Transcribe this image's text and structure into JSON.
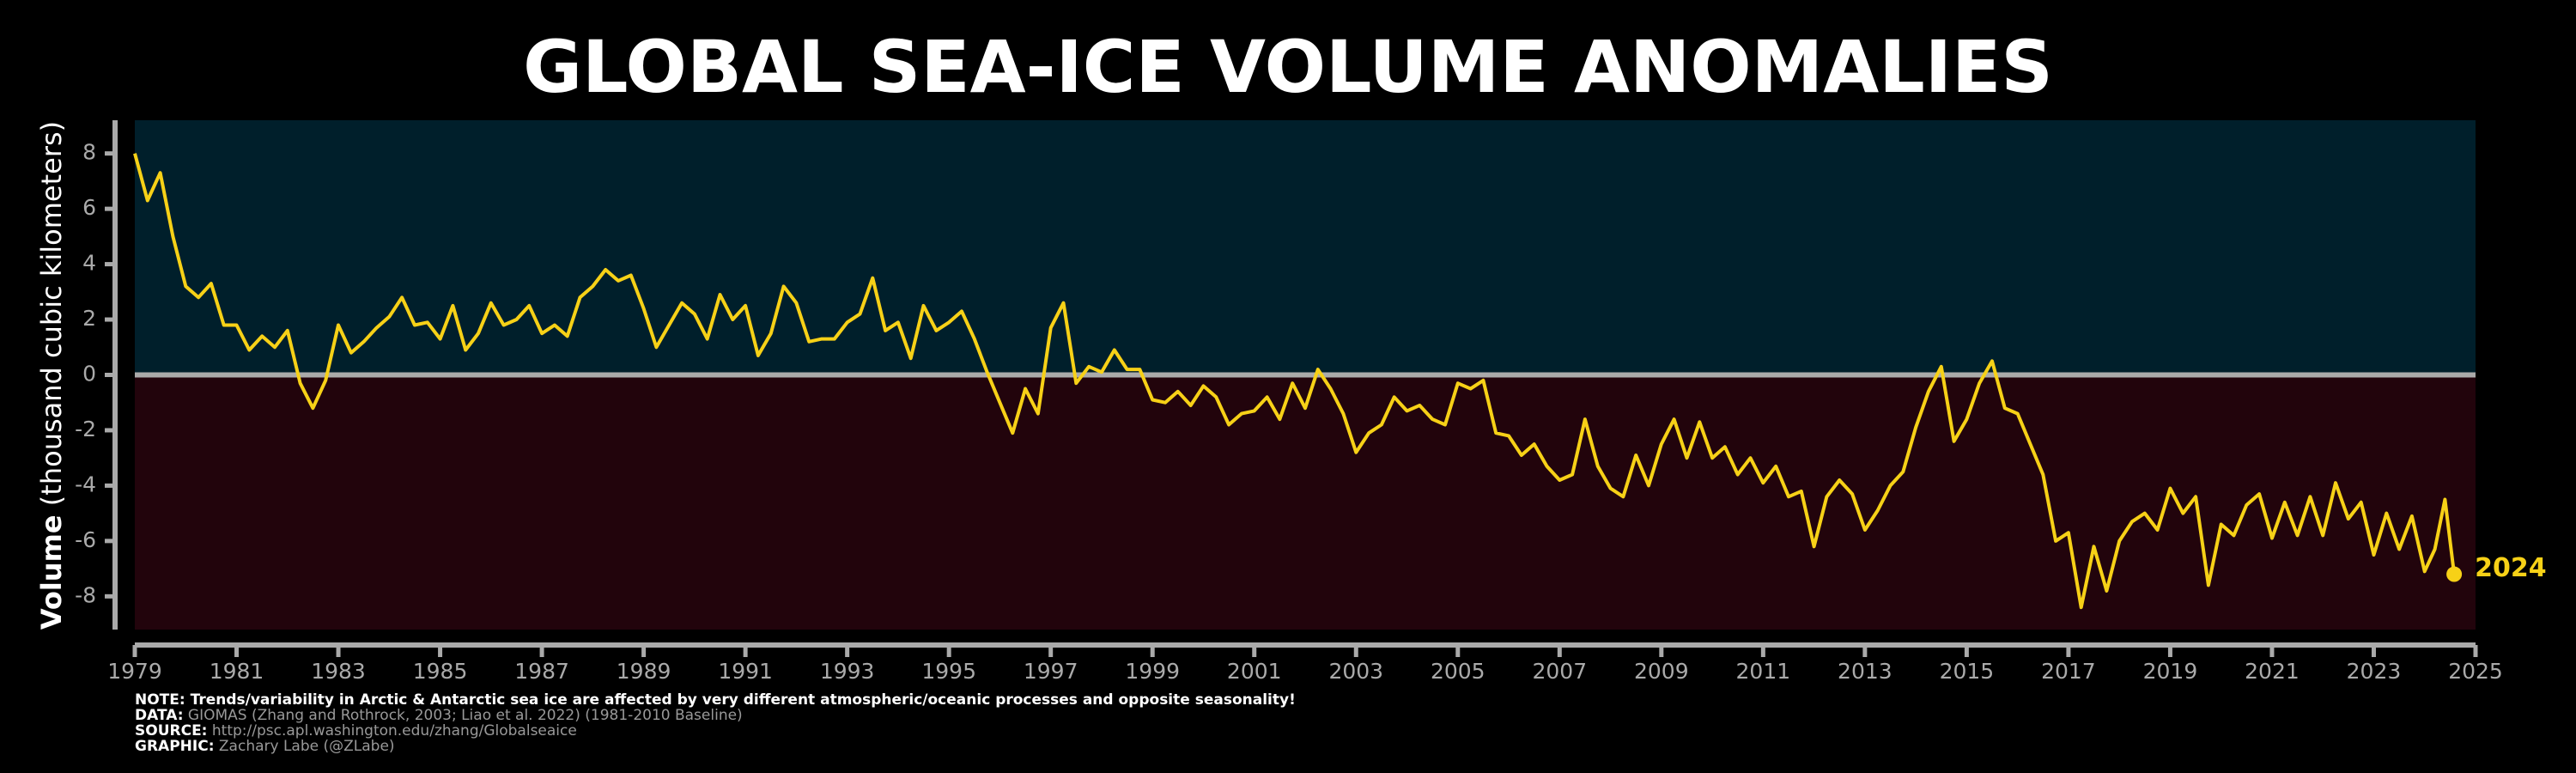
{
  "chart_data": {
    "type": "line",
    "title": "GLOBAL SEA-ICE VOLUME ANOMALIES",
    "ylabel": {
      "bold": "Volume",
      "rest": " (thousand cubic kilometers)"
    },
    "x": [
      1979,
      1979.25,
      1979.5,
      1979.75,
      1980,
      1980.25,
      1980.5,
      1980.75,
      1981,
      1981.25,
      1981.5,
      1981.75,
      1982,
      1982.25,
      1982.5,
      1982.75,
      1983,
      1983.25,
      1983.5,
      1983.75,
      1984,
      1984.25,
      1984.5,
      1984.75,
      1985,
      1985.25,
      1985.5,
      1985.75,
      1986,
      1986.25,
      1986.5,
      1986.75,
      1987,
      1987.25,
      1987.5,
      1987.75,
      1988,
      1988.25,
      1988.5,
      1988.75,
      1989,
      1989.25,
      1989.5,
      1989.75,
      1990,
      1990.25,
      1990.5,
      1990.75,
      1991,
      1991.25,
      1991.5,
      1991.75,
      1992,
      1992.25,
      1992.5,
      1992.75,
      1993,
      1993.25,
      1993.5,
      1993.75,
      1994,
      1994.25,
      1994.5,
      1994.75,
      1995,
      1995.25,
      1995.5,
      1995.75,
      1996,
      1996.25,
      1996.5,
      1996.75,
      1997,
      1997.25,
      1997.5,
      1997.75,
      1998,
      1998.25,
      1998.5,
      1998.75,
      1999,
      1999.25,
      1999.5,
      1999.75,
      2000,
      2000.25,
      2000.5,
      2000.75,
      2001,
      2001.25,
      2001.5,
      2001.75,
      2002,
      2002.25,
      2002.5,
      2002.75,
      2003,
      2003.25,
      2003.5,
      2003.75,
      2004,
      2004.25,
      2004.5,
      2004.75,
      2005,
      2005.25,
      2005.5,
      2005.75,
      2006,
      2006.25,
      2006.5,
      2006.75,
      2007,
      2007.25,
      2007.5,
      2007.75,
      2008,
      2008.25,
      2008.5,
      2008.75,
      2009,
      2009.25,
      2009.5,
      2009.75,
      2010,
      2010.25,
      2010.5,
      2010.75,
      2011,
      2011.25,
      2011.5,
      2011.75,
      2012,
      2012.25,
      2012.5,
      2012.75,
      2013,
      2013.25,
      2013.5,
      2013.75,
      2014,
      2014.25,
      2014.5,
      2014.75,
      2015,
      2015.25,
      2015.5,
      2015.75,
      2016,
      2016.25,
      2016.5,
      2016.75,
      2017,
      2017.25,
      2017.5,
      2017.75,
      2018,
      2018.25,
      2018.5,
      2018.75,
      2019,
      2019.25,
      2019.5,
      2019.75,
      2020,
      2020.25,
      2020.5,
      2020.75,
      2021,
      2021.25,
      2021.5,
      2021.75,
      2022,
      2022.25,
      2022.5,
      2022.75,
      2023,
      2023.25,
      2023.5,
      2023.75,
      2024,
      2024.2,
      2024.4,
      2024.58
    ],
    "values": [
      8.0,
      6.3,
      7.3,
      5.0,
      3.2,
      2.8,
      3.3,
      1.8,
      1.8,
      0.9,
      1.4,
      1.0,
      1.6,
      -0.3,
      -1.2,
      -0.2,
      1.8,
      0.8,
      1.2,
      1.7,
      2.1,
      2.8,
      1.8,
      1.9,
      1.3,
      2.5,
      0.9,
      1.5,
      2.6,
      1.8,
      2.0,
      2.5,
      1.5,
      1.8,
      1.4,
      2.8,
      3.2,
      3.8,
      3.4,
      3.6,
      2.4,
      1.0,
      1.8,
      2.6,
      2.2,
      1.3,
      2.9,
      2.0,
      2.5,
      0.7,
      1.5,
      3.2,
      2.6,
      1.2,
      1.3,
      1.3,
      1.9,
      2.2,
      3.5,
      1.6,
      1.9,
      0.6,
      2.5,
      1.6,
      1.9,
      2.3,
      1.3,
      0.1,
      -1.0,
      -2.1,
      -0.5,
      -1.4,
      1.7,
      2.6,
      -0.3,
      0.3,
      0.1,
      0.9,
      0.2,
      0.2,
      -0.9,
      -1.0,
      -0.6,
      -1.1,
      -0.4,
      -0.8,
      -1.8,
      -1.4,
      -1.3,
      -0.8,
      -1.6,
      -0.3,
      -1.2,
      0.2,
      -0.5,
      -1.4,
      -2.8,
      -2.1,
      -1.8,
      -0.8,
      -1.3,
      -1.1,
      -1.6,
      -1.8,
      -0.3,
      -0.5,
      -0.2,
      -2.1,
      -2.2,
      -2.9,
      -2.5,
      -3.3,
      -3.8,
      -3.6,
      -1.6,
      -3.3,
      -4.1,
      -4.4,
      -2.9,
      -4.0,
      -2.5,
      -1.6,
      -3.0,
      -1.7,
      -3.0,
      -2.6,
      -3.6,
      -3.0,
      -3.9,
      -3.3,
      -4.4,
      -4.2,
      -6.2,
      -4.4,
      -3.8,
      -4.3,
      -5.6,
      -4.9,
      -4.0,
      -3.5,
      -1.9,
      -0.6,
      0.3,
      -2.4,
      -1.6,
      -0.3,
      0.5,
      -1.2,
      -1.4,
      -2.5,
      -3.6,
      -6.0,
      -5.7,
      -8.4,
      -6.2,
      -7.8,
      -6.0,
      -5.3,
      -5.0,
      -5.6,
      -4.1,
      -5.0,
      -4.4,
      -7.6,
      -5.4,
      -5.8,
      -4.7,
      -4.3,
      -5.9,
      -4.6,
      -5.8,
      -4.4,
      -5.8,
      -3.9,
      -5.2,
      -4.6,
      -6.5,
      -5.0,
      -6.3,
      -5.1,
      -7.1,
      -6.3,
      -4.5,
      -7.2
    ],
    "color": "#f7d117",
    "annotation": "2024",
    "above_color": "#001f2b",
    "below_color": "#22040c",
    "hline": 0,
    "xlim": [
      1979,
      2025
    ],
    "xticks": [
      1979,
      1981,
      1983,
      1985,
      1987,
      1989,
      1991,
      1993,
      1995,
      1997,
      1999,
      2001,
      2003,
      2005,
      2007,
      2009,
      2011,
      2013,
      2015,
      2017,
      2019,
      2021,
      2023,
      2025
    ],
    "ylim": [
      -9.2,
      9.2
    ],
    "yticks": [
      -8,
      -6,
      -4,
      -2,
      0,
      2,
      4,
      6,
      8
    ],
    "notes": [
      {
        "label": "NOTE:",
        "text": " Trends/variability in Arctic & Antarctic sea ice are affected by very different atmospheric/oceanic processes and opposite seasonality!"
      },
      {
        "label": "DATA:",
        "text": " GIOMAS (Zhang and Rothrock, 2003; Liao et al. 2022) (1981-2010 Baseline)"
      },
      {
        "label": "SOURCE:",
        "text": " http://psc.apl.washington.edu/zhang/Globalseaice"
      },
      {
        "label": "GRAPHIC:",
        "text": " Zachary Labe (@ZLabe)"
      }
    ]
  }
}
